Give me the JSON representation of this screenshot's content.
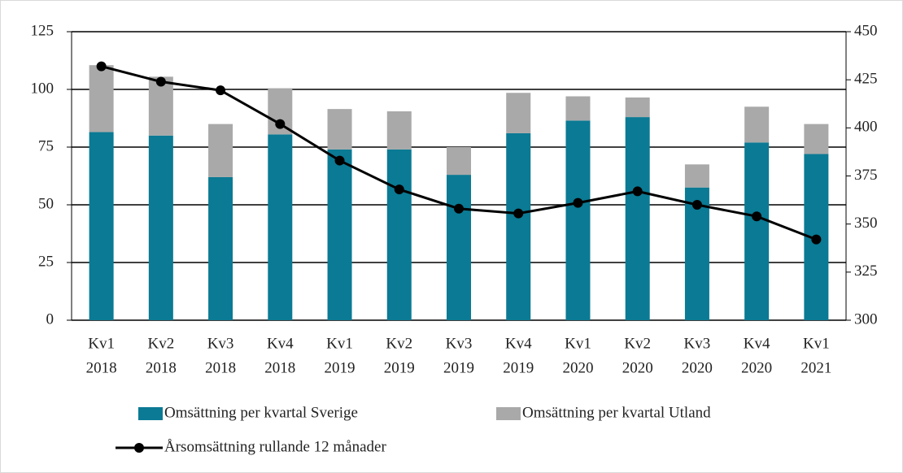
{
  "chart_data": {
    "type": "bar-line",
    "categories": [
      [
        "Kv1",
        "2018"
      ],
      [
        "Kv2",
        "2018"
      ],
      [
        "Kv3",
        "2018"
      ],
      [
        "Kv4",
        "2018"
      ],
      [
        "Kv1",
        "2019"
      ],
      [
        "Kv2",
        "2019"
      ],
      [
        "Kv3",
        "2019"
      ],
      [
        "Kv4",
        "2019"
      ],
      [
        "Kv1",
        "2020"
      ],
      [
        "Kv2",
        "2020"
      ],
      [
        "Kv3",
        "2020"
      ],
      [
        "Kv4",
        "2020"
      ],
      [
        "Kv1",
        "2021"
      ]
    ],
    "series": [
      {
        "name": "Omsättning per kvartal Sverige",
        "color": "#0b7a94",
        "type": "bar",
        "values": [
          81.5,
          80,
          62,
          80.5,
          74,
          74,
          63,
          81,
          86.5,
          88,
          57.5,
          77,
          72
        ]
      },
      {
        "name": "Omsättning per kvartal Utland",
        "color": "#a9a9a9",
        "type": "bar",
        "values": [
          29,
          25.5,
          23,
          20,
          17.5,
          16.5,
          12,
          17.5,
          10.5,
          8.5,
          10,
          15.5,
          13
        ]
      },
      {
        "name": "Årsomsättning rullande 12 månader",
        "color": "#000000",
        "type": "line",
        "axis": "y2",
        "values": [
          432,
          424,
          419.5,
          402,
          383,
          368,
          358,
          355.5,
          361,
          367,
          360,
          354,
          342
        ]
      }
    ],
    "ylim": [
      0,
      125
    ],
    "yticks": [
      0,
      25,
      50,
      75,
      100,
      125
    ],
    "y2lim": [
      300,
      450
    ],
    "y2ticks": [
      300,
      325,
      350,
      375,
      400,
      425,
      450
    ],
    "grid": true,
    "stacked": true,
    "legend": "bottom"
  }
}
